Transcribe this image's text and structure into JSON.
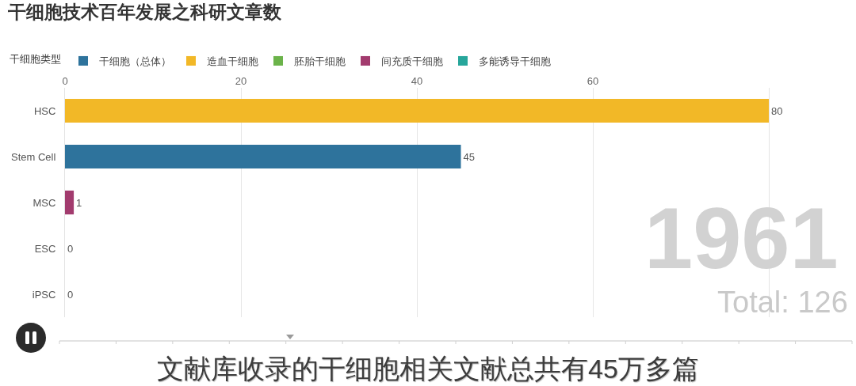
{
  "chart_data": {
    "type": "bar",
    "orientation": "horizontal",
    "title": "干细胞技术百年发展之科研文章数",
    "legend_title": "干细胞类型",
    "categories": [
      "HSC",
      "Stem Cell",
      "MSC",
      "ESC",
      "iPSC"
    ],
    "series": [
      {
        "name": "干细胞（总体）",
        "color": "#2e739c",
        "values": [
          null,
          45,
          null,
          null,
          null
        ]
      },
      {
        "name": "造血干细胞",
        "color": "#f2b827",
        "values": [
          80,
          null,
          null,
          null,
          null
        ]
      },
      {
        "name": "胚胎干细胞",
        "color": "#6bb34a",
        "values": [
          null,
          null,
          null,
          0,
          null
        ]
      },
      {
        "name": "间充质干细胞",
        "color": "#a23b6e",
        "values": [
          null,
          null,
          1,
          null,
          null
        ]
      },
      {
        "name": "多能诱导干细胞",
        "color": "#27a69b",
        "values": [
          null,
          null,
          null,
          null,
          0
        ]
      }
    ],
    "xlim": [
      0,
      80
    ],
    "xticks": [
      0,
      20,
      40,
      60
    ],
    "grid": "x",
    "legend": "top left",
    "data_labels": true,
    "annotations": [
      "1961",
      "Total: 126",
      "文献库收录的干细胞相关文献总共有45万多篇"
    ]
  }
}
